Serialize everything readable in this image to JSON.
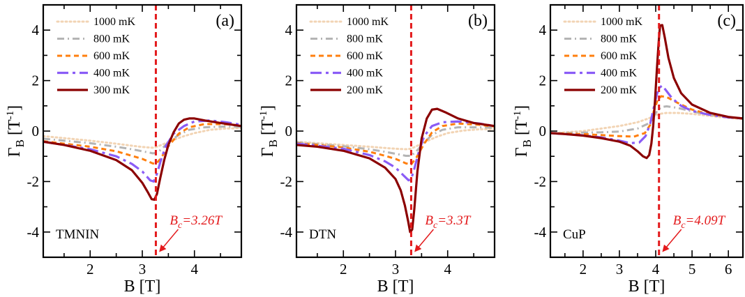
{
  "chart_data": [
    {
      "type": "line",
      "panel_tag": "(a)",
      "sample": "TMNIN",
      "xlabel": "B [T]",
      "ylabel": "Γ_B [T^-1]",
      "xlim": [
        1.1,
        4.9
      ],
      "ylim": [
        -5,
        5
      ],
      "xticks": [
        2,
        3,
        4
      ],
      "yticks": [
        -4,
        -2,
        0,
        2,
        4
      ],
      "critical_field": 3.26,
      "critical_label": "B_c=3.26T",
      "legend_position": "top-left",
      "series": [
        {
          "name": "1000 mK",
          "color": "#f2d4b4",
          "style": "dotted",
          "x": [
            1.1,
            1.5,
            2.0,
            2.5,
            2.8,
            3.0,
            3.2,
            3.26,
            3.4,
            3.6,
            3.8,
            4.0,
            4.3,
            4.6,
            4.9
          ],
          "y": [
            -0.2,
            -0.28,
            -0.38,
            -0.5,
            -0.58,
            -0.63,
            -0.66,
            -0.64,
            -0.52,
            -0.35,
            -0.2,
            -0.08,
            0.05,
            0.1,
            0.12
          ]
        },
        {
          "name": "800 mK",
          "color": "#b4b4b4",
          "style": "dash-dot",
          "x": [
            1.1,
            1.5,
            2.0,
            2.5,
            2.8,
            3.0,
            3.2,
            3.26,
            3.35,
            3.5,
            3.7,
            3.9,
            4.2,
            4.6,
            4.9
          ],
          "y": [
            -0.3,
            -0.38,
            -0.48,
            -0.62,
            -0.72,
            -0.8,
            -0.88,
            -0.87,
            -0.75,
            -0.45,
            -0.15,
            0.05,
            0.15,
            0.18,
            0.17
          ]
        },
        {
          "name": "600 mK",
          "color": "#ff7f0e",
          "style": "dashed",
          "x": [
            1.1,
            1.5,
            2.0,
            2.5,
            2.8,
            3.0,
            3.2,
            3.26,
            3.35,
            3.5,
            3.7,
            3.9,
            4.2,
            4.6,
            4.9
          ],
          "y": [
            -0.4,
            -0.5,
            -0.62,
            -0.8,
            -0.98,
            -1.1,
            -1.28,
            -1.3,
            -1.1,
            -0.6,
            -0.1,
            0.15,
            0.28,
            0.27,
            0.22
          ]
        },
        {
          "name": "400 mK",
          "color": "#8a5cf6",
          "style": "long-dash",
          "x": [
            1.1,
            1.5,
            2.0,
            2.5,
            2.8,
            3.0,
            3.15,
            3.22,
            3.28,
            3.35,
            3.45,
            3.6,
            3.8,
            4.0,
            4.3,
            4.6,
            4.9
          ],
          "y": [
            -0.42,
            -0.55,
            -0.72,
            -1.0,
            -1.3,
            -1.6,
            -1.95,
            -2.0,
            -1.7,
            -1.2,
            -0.6,
            -0.1,
            0.2,
            0.38,
            0.42,
            0.35,
            0.25
          ]
        },
        {
          "name": "300 mK",
          "color": "#8b0000",
          "style": "solid",
          "x": [
            1.1,
            1.5,
            2.0,
            2.5,
            2.8,
            3.0,
            3.1,
            3.18,
            3.23,
            3.28,
            3.34,
            3.42,
            3.5,
            3.6,
            3.7,
            3.8,
            3.9,
            4.0,
            4.2,
            4.5,
            4.9
          ],
          "y": [
            -0.42,
            -0.55,
            -0.78,
            -1.15,
            -1.55,
            -2.05,
            -2.4,
            -2.7,
            -2.72,
            -2.5,
            -1.9,
            -1.15,
            -0.55,
            -0.05,
            0.3,
            0.45,
            0.5,
            0.5,
            0.42,
            0.32,
            0.2
          ]
        }
      ]
    },
    {
      "type": "line",
      "panel_tag": "(b)",
      "sample": "DTN",
      "xlabel": "B [T]",
      "ylabel": "Γ_B [T^-1]",
      "xlim": [
        1.1,
        4.9
      ],
      "ylim": [
        -5,
        5
      ],
      "xticks": [
        2,
        3,
        4
      ],
      "yticks": [
        -4,
        -2,
        0,
        2,
        4
      ],
      "critical_field": 3.3,
      "critical_label": "B_c=3.3T",
      "legend_position": "top-left",
      "series": [
        {
          "name": "1000 mK",
          "color": "#f2d4b4",
          "style": "dotted",
          "x": [
            1.1,
            1.5,
            2.0,
            2.5,
            2.8,
            3.0,
            3.2,
            3.3,
            3.4,
            3.6,
            3.8,
            4.0,
            4.3,
            4.6,
            4.9
          ],
          "y": [
            -0.42,
            -0.48,
            -0.55,
            -0.62,
            -0.67,
            -0.7,
            -0.72,
            -0.7,
            -0.6,
            -0.4,
            -0.22,
            -0.08,
            0.02,
            0.07,
            0.08
          ]
        },
        {
          "name": "800 mK",
          "color": "#b4b4b4",
          "style": "dash-dot",
          "x": [
            1.1,
            1.5,
            2.0,
            2.5,
            2.8,
            3.0,
            3.2,
            3.3,
            3.4,
            3.55,
            3.7,
            3.9,
            4.2,
            4.6,
            4.9
          ],
          "y": [
            -0.45,
            -0.52,
            -0.6,
            -0.72,
            -0.82,
            -0.9,
            -0.98,
            -0.98,
            -0.8,
            -0.45,
            -0.15,
            0.05,
            0.15,
            0.15,
            0.13
          ]
        },
        {
          "name": "600 mK",
          "color": "#ff7f0e",
          "style": "dashed",
          "x": [
            1.1,
            1.5,
            2.0,
            2.5,
            2.8,
            3.0,
            3.2,
            3.3,
            3.4,
            3.55,
            3.7,
            3.9,
            4.2,
            4.6,
            4.9
          ],
          "y": [
            -0.48,
            -0.55,
            -0.65,
            -0.82,
            -0.98,
            -1.1,
            -1.28,
            -1.32,
            -1.05,
            -0.5,
            -0.05,
            0.2,
            0.3,
            0.25,
            0.18
          ]
        },
        {
          "name": "400 mK",
          "color": "#8a5cf6",
          "style": "long-dash",
          "x": [
            1.1,
            1.5,
            2.0,
            2.5,
            2.8,
            3.0,
            3.15,
            3.25,
            3.3,
            3.36,
            3.45,
            3.55,
            3.7,
            3.9,
            4.2,
            4.6,
            4.9
          ],
          "y": [
            -0.5,
            -0.58,
            -0.7,
            -0.95,
            -1.2,
            -1.45,
            -1.75,
            -1.95,
            -1.9,
            -1.5,
            -0.8,
            -0.2,
            0.2,
            0.35,
            0.38,
            0.3,
            0.2
          ]
        },
        {
          "name": "200 mK",
          "color": "#8b0000",
          "style": "solid",
          "x": [
            1.1,
            1.5,
            2.0,
            2.5,
            2.8,
            3.0,
            3.1,
            3.18,
            3.24,
            3.28,
            3.32,
            3.36,
            3.42,
            3.5,
            3.6,
            3.7,
            3.8,
            3.95,
            4.2,
            4.5,
            4.9
          ],
          "y": [
            -0.55,
            -0.62,
            -0.78,
            -1.08,
            -1.45,
            -1.9,
            -2.35,
            -2.95,
            -3.55,
            -4.0,
            -3.9,
            -3.1,
            -1.6,
            -0.3,
            0.5,
            0.85,
            0.88,
            0.75,
            0.5,
            0.32,
            0.2
          ]
        }
      ]
    },
    {
      "type": "line",
      "panel_tag": "(c)",
      "sample": "CuP",
      "xlabel": "B [T]",
      "ylabel": "Γ_B [T^-1]",
      "xlim": [
        1.1,
        6.4
      ],
      "ylim": [
        -5,
        5
      ],
      "xticks": [
        2,
        3,
        4,
        5,
        6
      ],
      "yticks": [
        -4,
        -2,
        0,
        2,
        4
      ],
      "critical_field": 4.09,
      "critical_label": "B_c=4.09T",
      "legend_position": "top-left",
      "series": [
        {
          "name": "1000 mK",
          "color": "#f2d4b4",
          "style": "dotted",
          "x": [
            1.1,
            1.5,
            2.0,
            2.5,
            3.0,
            3.5,
            3.8,
            4.0,
            4.1,
            4.3,
            4.6,
            5.0,
            5.5,
            6.0,
            6.4
          ],
          "y": [
            -0.08,
            -0.05,
            0.0,
            0.1,
            0.2,
            0.35,
            0.5,
            0.62,
            0.68,
            0.72,
            0.72,
            0.68,
            0.6,
            0.52,
            0.48
          ]
        },
        {
          "name": "800 mK",
          "color": "#b4b4b4",
          "style": "dash-dot",
          "x": [
            1.1,
            1.5,
            2.0,
            2.5,
            3.0,
            3.5,
            3.8,
            3.95,
            4.05,
            4.15,
            4.3,
            4.6,
            5.0,
            5.5,
            6.0,
            6.4
          ],
          "y": [
            -0.08,
            -0.08,
            -0.06,
            -0.05,
            -0.02,
            0.1,
            0.3,
            0.6,
            0.82,
            0.95,
            0.98,
            0.92,
            0.78,
            0.64,
            0.55,
            0.5
          ]
        },
        {
          "name": "600 mK",
          "color": "#ff7f0e",
          "style": "dashed",
          "x": [
            1.1,
            1.5,
            2.0,
            2.5,
            3.0,
            3.4,
            3.7,
            3.85,
            3.95,
            4.05,
            4.15,
            4.3,
            4.6,
            5.0,
            5.5,
            6.0,
            6.4
          ],
          "y": [
            -0.08,
            -0.1,
            -0.12,
            -0.16,
            -0.2,
            -0.22,
            -0.08,
            0.25,
            0.8,
            1.22,
            1.38,
            1.35,
            1.12,
            0.85,
            0.66,
            0.55,
            0.5
          ]
        },
        {
          "name": "400 mK",
          "color": "#8a5cf6",
          "style": "long-dash",
          "x": [
            1.1,
            1.5,
            2.0,
            2.5,
            3.0,
            3.3,
            3.55,
            3.72,
            3.85,
            3.95,
            4.03,
            4.1,
            4.18,
            4.28,
            4.45,
            4.7,
            5.0,
            5.5,
            6.0,
            6.4
          ],
          "y": [
            -0.08,
            -0.12,
            -0.17,
            -0.25,
            -0.38,
            -0.48,
            -0.45,
            -0.2,
            0.3,
            0.95,
            1.45,
            1.72,
            1.8,
            1.62,
            1.3,
            1.0,
            0.8,
            0.64,
            0.54,
            0.5
          ]
        },
        {
          "name": "200 mK",
          "color": "#8b0000",
          "style": "solid",
          "x": [
            1.1,
            1.5,
            2.0,
            2.5,
            3.0,
            3.3,
            3.5,
            3.65,
            3.75,
            3.82,
            3.88,
            3.93,
            3.98,
            4.03,
            4.08,
            4.12,
            4.18,
            4.25,
            4.35,
            4.5,
            4.7,
            5.0,
            5.5,
            6.0,
            6.4
          ],
          "y": [
            -0.08,
            -0.12,
            -0.18,
            -0.28,
            -0.42,
            -0.58,
            -0.8,
            -1.0,
            -1.07,
            -0.95,
            -0.5,
            0.2,
            1.2,
            2.4,
            3.5,
            4.18,
            4.2,
            3.7,
            2.9,
            2.1,
            1.5,
            1.05,
            0.72,
            0.56,
            0.5
          ]
        }
      ]
    }
  ]
}
